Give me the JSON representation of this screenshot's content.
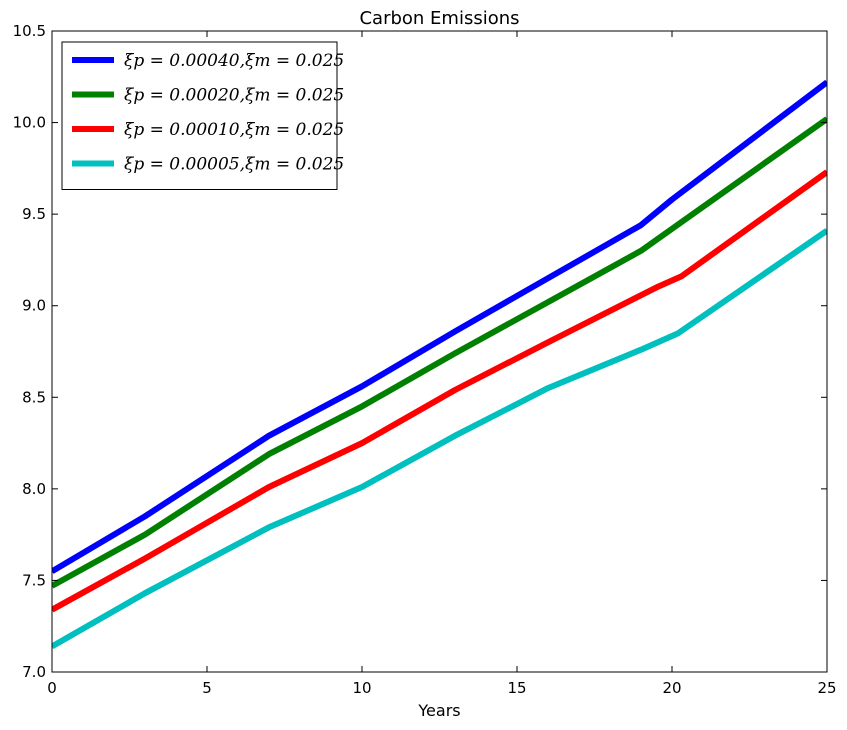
{
  "chart_data": {
    "type": "line",
    "title": "Carbon Emissions",
    "xlabel": "Years",
    "ylabel": "",
    "xlim": [
      0,
      25
    ],
    "ylim": [
      7.0,
      10.5
    ],
    "xticks": [
      "0",
      "5",
      "10",
      "15",
      "20",
      "25"
    ],
    "yticks": [
      "7.0",
      "7.5",
      "8.0",
      "8.5",
      "9.0",
      "9.5",
      "10.0",
      "10.5"
    ],
    "grid": false,
    "legend_position": "top-left",
    "series": [
      {
        "name": "ξp = 0.00040,ξm = 0.025",
        "color": "#0000ff",
        "points": [
          [
            0,
            7.55
          ],
          [
            3,
            7.85
          ],
          [
            7,
            8.29
          ],
          [
            10,
            8.56
          ],
          [
            13,
            8.86
          ],
          [
            16,
            9.15
          ],
          [
            19,
            9.44
          ],
          [
            20,
            9.58
          ],
          [
            25,
            10.22
          ]
        ]
      },
      {
        "name": "ξp = 0.00020,ξm = 0.025",
        "color": "#008000",
        "points": [
          [
            0,
            7.47
          ],
          [
            3,
            7.75
          ],
          [
            7,
            8.19
          ],
          [
            10,
            8.45
          ],
          [
            13,
            8.74
          ],
          [
            16,
            9.02
          ],
          [
            19,
            9.3
          ],
          [
            20,
            9.42
          ],
          [
            25,
            10.02
          ]
        ]
      },
      {
        "name": "ξp = 0.00010,ξm = 0.025",
        "color": "#ff0000",
        "points": [
          [
            0,
            7.34
          ],
          [
            3,
            7.62
          ],
          [
            7,
            8.01
          ],
          [
            10,
            8.25
          ],
          [
            13,
            8.54
          ],
          [
            16,
            8.8
          ],
          [
            19.5,
            9.1
          ],
          [
            20.3,
            9.16
          ],
          [
            25,
            9.73
          ]
        ]
      },
      {
        "name": "ξp = 0.00005,ξm = 0.025",
        "color": "#00bfbf",
        "points": [
          [
            0,
            7.14
          ],
          [
            3,
            7.43
          ],
          [
            7,
            7.79
          ],
          [
            10,
            8.01
          ],
          [
            13,
            8.29
          ],
          [
            16,
            8.55
          ],
          [
            19,
            8.76
          ],
          [
            20.2,
            8.85
          ],
          [
            25,
            9.41
          ]
        ]
      }
    ]
  }
}
